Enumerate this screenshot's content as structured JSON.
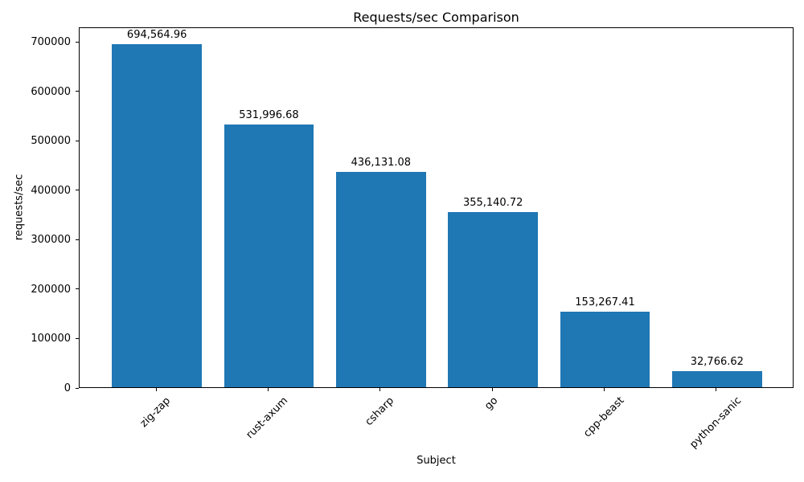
{
  "chart_data": {
    "type": "bar",
    "title": "Requests/sec Comparison",
    "xlabel": "Subject",
    "ylabel": "requests/sec",
    "categories": [
      "zig-zap",
      "rust-axum",
      "csharp",
      "go",
      "cpp-beast",
      "python-sanic"
    ],
    "values": [
      694564.96,
      531996.68,
      436131.08,
      355140.72,
      153267.41,
      32766.62
    ],
    "value_labels": [
      "694,564.96",
      "531,996.68",
      "436,131.08",
      "355,140.72",
      "153,267.41",
      "32,766.62"
    ],
    "yticks": [
      0,
      100000,
      200000,
      300000,
      400000,
      500000,
      600000,
      700000
    ],
    "ytick_labels": [
      "0",
      "100000",
      "200000",
      "300000",
      "400000",
      "500000",
      "600000",
      "700000"
    ],
    "ylim": [
      0,
      730000
    ],
    "bar_color": "#1f77b4",
    "text_color": "#000000",
    "grid": false,
    "legend": null,
    "x_tick_rotation": 45
  }
}
